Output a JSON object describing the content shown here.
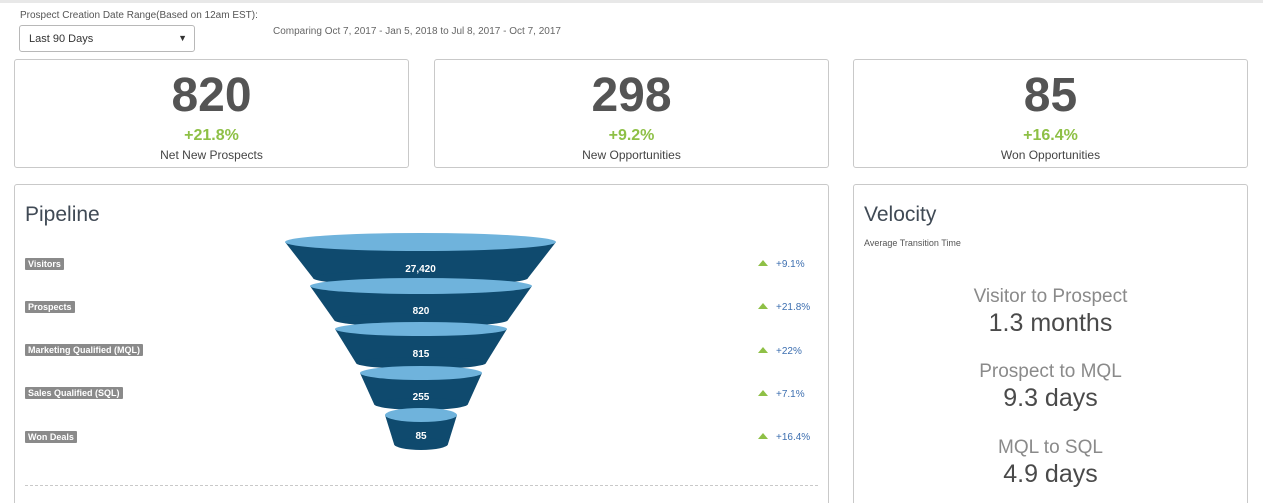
{
  "filter": {
    "label": "Prospect Creation Date Range(Based on 12am EST):",
    "selected": "Last 90 Days",
    "comparison": "Comparing Oct 7, 2017 - Jan 5, 2018 to Jul 8, 2017 - Oct 7, 2017"
  },
  "kpis": [
    {
      "value": "820",
      "change": "+21.8%",
      "label": "Net New Prospects"
    },
    {
      "value": "298",
      "change": "+9.2%",
      "label": "New Opportunities"
    },
    {
      "value": "85",
      "change": "+16.4%",
      "label": "Won Opportunities"
    }
  ],
  "pipeline": {
    "title": "Pipeline",
    "stages": [
      {
        "label": "Visitors",
        "value": "27,420",
        "change": "+9.1%"
      },
      {
        "label": "Prospects",
        "value": "820",
        "change": "+21.8%"
      },
      {
        "label": "Marketing Qualified (MQL)",
        "value": "815",
        "change": "+22%"
      },
      {
        "label": "Sales Qualified (SQL)",
        "value": "255",
        "change": "+7.1%"
      },
      {
        "label": "Won Deals",
        "value": "85",
        "change": "+16.4%"
      }
    ]
  },
  "velocity": {
    "title": "Velocity",
    "subtitle": "Average Transition Time",
    "items": [
      {
        "name": "Visitor to Prospect",
        "value": "1.3 months"
      },
      {
        "name": "Prospect to MQL",
        "value": "9.3 days"
      },
      {
        "name": "MQL to SQL",
        "value": "4.9 days"
      }
    ]
  },
  "colors": {
    "funnel_dark": "#0f4a6e",
    "funnel_light": "#6fb3dc",
    "positive": "#8ec046",
    "trend_text": "#3d6fb0"
  }
}
